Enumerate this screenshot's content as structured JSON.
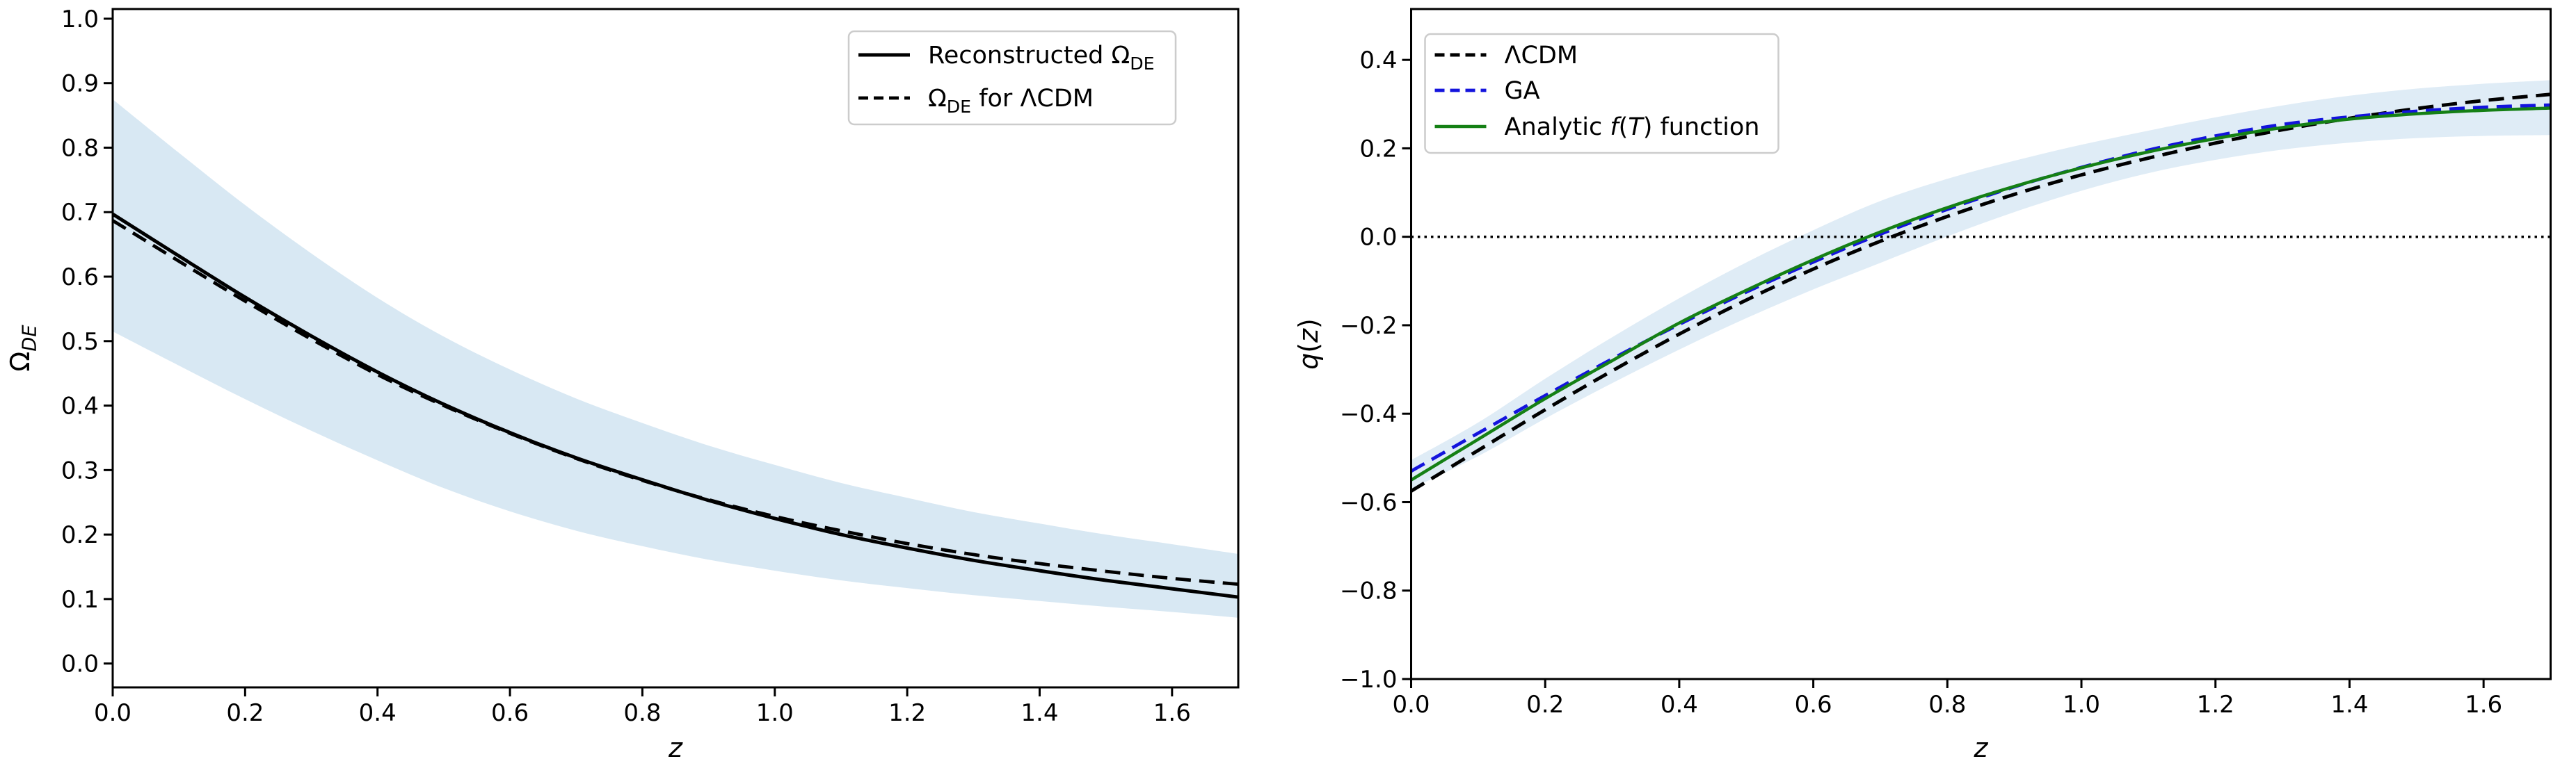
{
  "chart_data": [
    {
      "id": "omega-de-vs-z",
      "type": "line",
      "title": "",
      "xlabel": "z",
      "xlabel_rich": [
        {
          "t": "z",
          "italic": true
        }
      ],
      "ylabel": "Ω_DE",
      "ylabel_rich": [
        {
          "t": "Ω"
        },
        {
          "t": "DE",
          "sub": true,
          "italic": true
        }
      ],
      "xlim": [
        0,
        1.7
      ],
      "ylim": [
        -0.037,
        1.015
      ],
      "grid": false,
      "legend_position": "upper right",
      "xticks": {
        "values": [
          0.0,
          0.2,
          0.4,
          0.6,
          0.8,
          1.0,
          1.2,
          1.4,
          1.6
        ],
        "labels": [
          "0.0",
          "0.2",
          "0.4",
          "0.6",
          "0.8",
          "1.0",
          "1.2",
          "1.4",
          "1.6"
        ]
      },
      "yticks": {
        "values": [
          0.0,
          0.1,
          0.2,
          0.3,
          0.4,
          0.5,
          0.6,
          0.7,
          0.8,
          0.9,
          1.0
        ],
        "labels": [
          "0.0",
          "0.1",
          "0.2",
          "0.3",
          "0.4",
          "0.5",
          "0.6",
          "0.7",
          "0.8",
          "0.9",
          "1.0"
        ]
      },
      "x": [
        0.0,
        0.1,
        0.2,
        0.3,
        0.4,
        0.5,
        0.6,
        0.7,
        0.8,
        0.9,
        1.0,
        1.1,
        1.2,
        1.3,
        1.4,
        1.5,
        1.6,
        1.7
      ],
      "band": {
        "color": "#d8e8f3",
        "upper": [
          0.875,
          0.792,
          0.711,
          0.636,
          0.567,
          0.507,
          0.456,
          0.411,
          0.373,
          0.338,
          0.308,
          0.28,
          0.257,
          0.235,
          0.217,
          0.2,
          0.185,
          0.17
        ],
        "lower": [
          0.515,
          0.462,
          0.41,
          0.361,
          0.315,
          0.272,
          0.236,
          0.206,
          0.182,
          0.161,
          0.144,
          0.129,
          0.117,
          0.106,
          0.097,
          0.088,
          0.08,
          0.071
        ]
      },
      "series": [
        {
          "name": "Reconstructed Ω_DE",
          "label_rich": [
            {
              "t": "Reconstructed Ω"
            },
            {
              "t": "DE",
              "sub": true
            }
          ],
          "color": "#000000",
          "style": "solid",
          "width": 5,
          "values": [
            0.697,
            0.632,
            0.568,
            0.508,
            0.452,
            0.402,
            0.358,
            0.319,
            0.285,
            0.253,
            0.225,
            0.2,
            0.179,
            0.16,
            0.144,
            0.129,
            0.116,
            0.103
          ]
        },
        {
          "name": "Ω_DE for ΛCDM",
          "label_rich": [
            {
              "t": "Ω"
            },
            {
              "t": "DE",
              "sub": true
            },
            {
              "t": " for ΛCDM"
            }
          ],
          "color": "#000000",
          "style": "dashed",
          "width": 4.8,
          "values": [
            0.687,
            0.624,
            0.562,
            0.503,
            0.448,
            0.4,
            0.357,
            0.318,
            0.284,
            0.254,
            0.228,
            0.206,
            0.186,
            0.169,
            0.155,
            0.143,
            0.132,
            0.123
          ]
        }
      ]
    },
    {
      "id": "qz-vs-z",
      "type": "line",
      "title": "",
      "xlabel": "z",
      "xlabel_rich": [
        {
          "t": "z",
          "italic": true
        }
      ],
      "ylabel": "q(z)",
      "ylabel_rich": [
        {
          "t": "q",
          "italic": true
        },
        {
          "t": "("
        },
        {
          "t": "z",
          "italic": true
        },
        {
          "t": ")"
        }
      ],
      "xlim": [
        0,
        1.7
      ],
      "ylim": [
        -1.0,
        0.515
      ],
      "grid": false,
      "legend_position": "upper left",
      "hline": {
        "y": 0.0,
        "style": "dotted",
        "color": "#000000"
      },
      "xticks": {
        "values": [
          0.0,
          0.2,
          0.4,
          0.6,
          0.8,
          1.0,
          1.2,
          1.4,
          1.6
        ],
        "labels": [
          "0.0",
          "0.2",
          "0.4",
          "0.6",
          "0.8",
          "1.0",
          "1.2",
          "1.4",
          "1.6"
        ]
      },
      "yticks": {
        "values": [
          -1.0,
          -0.8,
          -0.6,
          -0.4,
          -0.2,
          0.0,
          0.2,
          0.4
        ],
        "labels": [
          "−1.0",
          "−0.8",
          "−0.6",
          "−0.4",
          "−0.2",
          "0.0",
          "0.2",
          "0.4"
        ]
      },
      "x": [
        0.0,
        0.1,
        0.2,
        0.3,
        0.4,
        0.5,
        0.6,
        0.7,
        0.8,
        0.9,
        1.0,
        1.1,
        1.2,
        1.3,
        1.4,
        1.5,
        1.6,
        1.7
      ],
      "band": {
        "color": "#dfecf6",
        "upper": [
          -0.505,
          -0.42,
          -0.321,
          -0.227,
          -0.139,
          -0.058,
          0.015,
          0.081,
          0.131,
          0.172,
          0.208,
          0.24,
          0.27,
          0.297,
          0.319,
          0.335,
          0.346,
          0.354
        ],
        "lower": [
          -0.57,
          -0.496,
          -0.411,
          -0.331,
          -0.255,
          -0.184,
          -0.119,
          -0.059,
          0.001,
          0.056,
          0.104,
          0.144,
          0.174,
          0.197,
          0.213,
          0.223,
          0.228,
          0.23
        ]
      },
      "series": [
        {
          "name": "ΛCDM",
          "label_rich": [
            {
              "t": "ΛCDM"
            }
          ],
          "color": "#000000",
          "style": "dashed",
          "width": 5,
          "values": [
            -0.575,
            -0.483,
            -0.391,
            -0.303,
            -0.22,
            -0.143,
            -0.073,
            -0.01,
            0.046,
            0.096,
            0.14,
            0.178,
            0.212,
            0.242,
            0.268,
            0.29,
            0.308,
            0.322
          ]
        },
        {
          "name": "GA",
          "label_rich": [
            {
              "t": "GA"
            }
          ],
          "color": "#1414dd",
          "style": "dashed",
          "width": 4.8,
          "values": [
            -0.53,
            -0.444,
            -0.359,
            -0.276,
            -0.198,
            -0.125,
            -0.057,
            0.006,
            0.062,
            0.113,
            0.157,
            0.196,
            0.228,
            0.254,
            0.271,
            0.284,
            0.293,
            0.298
          ]
        },
        {
          "name": "Analytic f(T) function",
          "label_rich": [
            {
              "t": "Analytic "
            },
            {
              "t": "f",
              "italic": true
            },
            {
              "t": "("
            },
            {
              "t": "T",
              "italic": true
            },
            {
              "t": ") function"
            }
          ],
          "color": "#158015",
          "style": "solid",
          "width": 4.5,
          "values": [
            -0.55,
            -0.458,
            -0.366,
            -0.28,
            -0.195,
            -0.121,
            -0.052,
            0.011,
            0.066,
            0.114,
            0.156,
            0.192,
            0.222,
            0.247,
            0.266,
            0.278,
            0.286,
            0.291
          ]
        }
      ]
    }
  ]
}
